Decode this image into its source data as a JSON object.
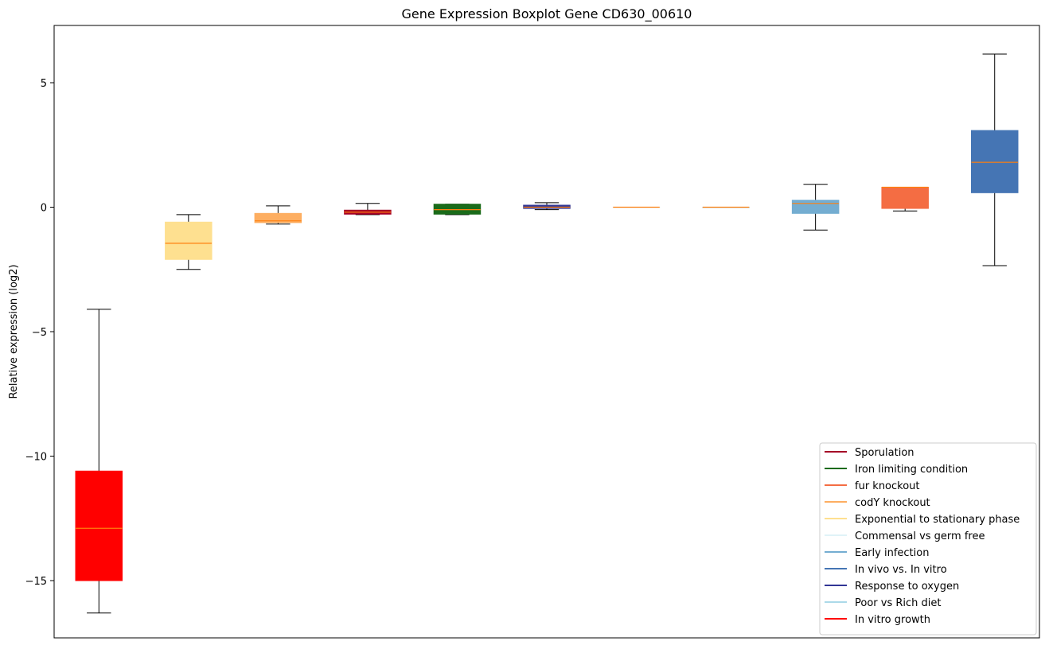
{
  "chart_data": {
    "type": "boxplot",
    "title": "Gene Expression Boxplot Gene CD630_00610",
    "ylabel": "Relative expression (log2)",
    "xlabel": "",
    "ylim": [
      -17.3,
      7.3
    ],
    "yticks": [
      -15,
      -10,
      -5,
      0,
      5
    ],
    "ytick_labels": [
      "−15",
      "−10",
      "−5",
      "0",
      "5"
    ],
    "grid": false,
    "legend_position": "lower-right",
    "boxes": [
      {
        "series": "In vitro growth",
        "color": "#ff0000",
        "whisker_low": -16.3,
        "q1": -15.0,
        "median": -12.9,
        "q3": -10.6,
        "whisker_high": -4.1
      },
      {
        "series": "Exponential to stationary phase",
        "color": "#fee090",
        "whisker_low": -2.5,
        "q1": -2.1,
        "median": -1.45,
        "q3": -0.6,
        "whisker_high": -0.3
      },
      {
        "series": "codY knockout",
        "color": "#fdae61",
        "whisker_low": -0.68,
        "q1": -0.62,
        "median": -0.55,
        "q3": -0.25,
        "whisker_high": 0.05
      },
      {
        "series": "Sporulation",
        "color": "#a50026",
        "whisker_low": -0.3,
        "q1": -0.28,
        "median": -0.2,
        "q3": -0.12,
        "whisker_high": 0.15
      },
      {
        "series": "Iron limiting condition",
        "color": "#1a6b1a",
        "whisker_low": -0.3,
        "q1": -0.28,
        "median": -0.1,
        "q3": 0.12,
        "whisker_high": 0.12
      },
      {
        "series": "Response to oxygen",
        "color": "#313695",
        "whisker_low": -0.1,
        "q1": -0.05,
        "median": 0.0,
        "q3": 0.08,
        "whisker_high": 0.18
      },
      {
        "series": "Commensal vs germ free",
        "color": "#e0f3f8",
        "whisker_low": 0.0,
        "q1": 0.0,
        "median": 0.0,
        "q3": 0.0,
        "whisker_high": 0.0
      },
      {
        "series": "Poor vs Rich diet",
        "color": "#abd9e9",
        "whisker_low": 0.0,
        "q1": 0.0,
        "median": 0.0,
        "q3": 0.0,
        "whisker_high": 0.0
      },
      {
        "series": "Early infection",
        "color": "#74add1",
        "whisker_low": -0.92,
        "q1": -0.25,
        "median": 0.15,
        "q3": 0.28,
        "whisker_high": 0.92
      },
      {
        "series": "fur knockout",
        "color": "#f46d43",
        "whisker_low": -0.15,
        "q1": -0.05,
        "median": 0.8,
        "q3": 0.8,
        "whisker_high": 0.8
      },
      {
        "series": "In vivo vs. In vitro",
        "color": "#4575b4",
        "whisker_low": -2.35,
        "q1": 0.58,
        "median": 1.8,
        "q3": 3.08,
        "whisker_high": 6.15
      }
    ],
    "median_color": "#ff7f0e",
    "legend": [
      {
        "label": "Sporulation",
        "color": "#a50026"
      },
      {
        "label": "Iron limiting condition",
        "color": "#1a6b1a"
      },
      {
        "label": "fur knockout",
        "color": "#f46d43"
      },
      {
        "label": "codY knockout",
        "color": "#fdae61"
      },
      {
        "label": "Exponential to stationary phase",
        "color": "#fee090"
      },
      {
        "label": "Commensal vs germ free",
        "color": "#e0f3f8"
      },
      {
        "label": "Early infection",
        "color": "#74add1"
      },
      {
        "label": "In vivo vs. In vitro",
        "color": "#4575b4"
      },
      {
        "label": "Response to oxygen",
        "color": "#313695"
      },
      {
        "label": "Poor vs Rich diet",
        "color": "#abd9e9"
      },
      {
        "label": "In vitro growth",
        "color": "#ff0000"
      }
    ]
  }
}
